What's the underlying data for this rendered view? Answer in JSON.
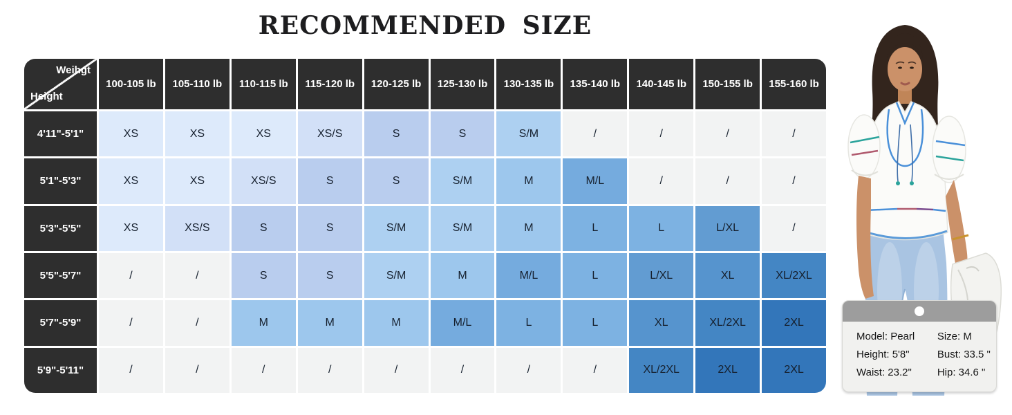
{
  "chart_data": {
    "type": "table",
    "title": "RECOMMENDED SIZE",
    "corner_top_label": "Weihgt",
    "corner_bottom_label": "Height",
    "columns": [
      "100-105 lb",
      "105-110 lb",
      "110-115 lb",
      "115-120 lb",
      "120-125 lb",
      "125-130 lb",
      "130-135 lb",
      "135-140 lb",
      "140-145 lb",
      "150-155 lb",
      "155-160 lb"
    ],
    "rows": [
      {
        "height": "4'11\"-5'1\"",
        "sizes": [
          "XS",
          "XS",
          "XS",
          "XS/S",
          "S",
          "S",
          "S/M",
          "/",
          "/",
          "/",
          "/"
        ]
      },
      {
        "height": "5'1\"-5'3\"",
        "sizes": [
          "XS",
          "XS",
          "XS/S",
          "S",
          "S",
          "S/M",
          "M",
          "M/L",
          "/",
          "/",
          "/"
        ]
      },
      {
        "height": "5'3\"-5'5\"",
        "sizes": [
          "XS",
          "XS/S",
          "S",
          "S",
          "S/M",
          "S/M",
          "M",
          "L",
          "L",
          "L/XL",
          "/"
        ]
      },
      {
        "height": "5'5\"-5'7\"",
        "sizes": [
          "/",
          "/",
          "S",
          "S",
          "S/M",
          "M",
          "M/L",
          "L",
          "L/XL",
          "XL",
          "XL/2XL"
        ]
      },
      {
        "height": "5'7\"-5'9\"",
        "sizes": [
          "/",
          "/",
          "M",
          "M",
          "M",
          "M/L",
          "L",
          "L",
          "XL",
          "XL/2XL",
          "2XL"
        ]
      },
      {
        "height": "5'9\"-5'11\"",
        "sizes": [
          "/",
          "/",
          "/",
          "/",
          "/",
          "/",
          "/",
          "/",
          "XL/2XL",
          "2XL",
          "2XL"
        ]
      }
    ],
    "cell_colors": {
      "XS": "#ddeafb",
      "XS/S": "#d2e0f7",
      "S": "#b9cdee",
      "S/M": "#add0f1",
      "M": "#9dc7ed",
      "M/L": "#75abde",
      "L": "#7db2e2",
      "L/XL": "#629cd2",
      "XL": "#5694ce",
      "XL/2XL": "#4486c4",
      "2XL": "#3376ba",
      "/": "#f2f3f3"
    },
    "header_bg": "#2e2e2e",
    "legend_position": "none",
    "grid": "white 3px separators, rounded outer corners"
  },
  "model_card": {
    "rows": [
      {
        "left": "Model: Pearl",
        "right": "Size: M"
      },
      {
        "left": "Height: 5'8\"",
        "right": "Bust: 33.5 \""
      },
      {
        "left": "Waist: 23.2\"",
        "right": "Hip: 34.6 \""
      }
    ]
  },
  "model_photo": {
    "description": "woman with long dark brown hair wearing white puff-sleeve blouse with blue, teal and red trim, light blue jeans, holding white clutch bag",
    "blouse_color": "#fbfbf9",
    "jeans_color": "#a9c4e2",
    "trim_blue": "#4a90d9",
    "trim_teal": "#2aa39b",
    "trim_red": "#b05a6e"
  }
}
